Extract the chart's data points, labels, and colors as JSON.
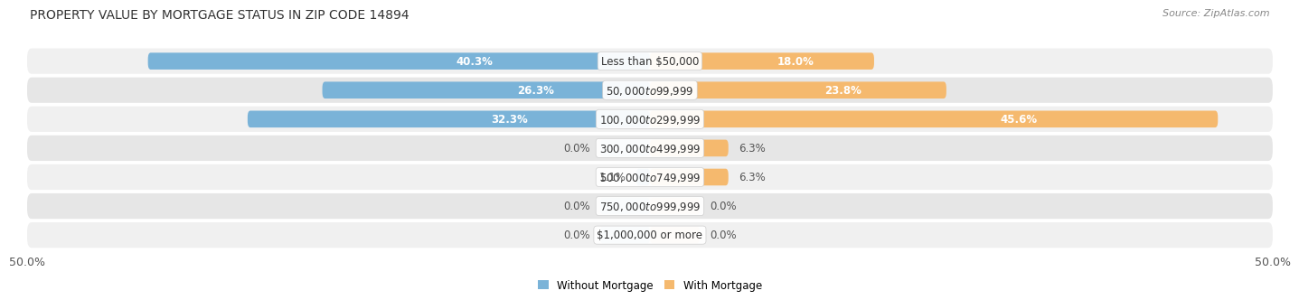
{
  "title": "PROPERTY VALUE BY MORTGAGE STATUS IN ZIP CODE 14894",
  "source": "Source: ZipAtlas.com",
  "categories": [
    "Less than $50,000",
    "$50,000 to $99,999",
    "$100,000 to $299,999",
    "$300,000 to $499,999",
    "$500,000 to $749,999",
    "$750,000 to $999,999",
    "$1,000,000 or more"
  ],
  "without_mortgage": [
    40.3,
    26.3,
    32.3,
    0.0,
    1.1,
    0.0,
    0.0
  ],
  "with_mortgage": [
    18.0,
    23.8,
    45.6,
    6.3,
    6.3,
    0.0,
    0.0
  ],
  "without_mortgage_color": "#7ab3d8",
  "with_mortgage_color": "#f5b96e",
  "without_mortgage_stub_color": "#aac8e0",
  "with_mortgage_stub_color": "#f5d4a8",
  "row_color_odd": "#f0f0f0",
  "row_color_even": "#e6e6e6",
  "axis_label_left": "50.0%",
  "axis_label_right": "50.0%",
  "max_val": 50.0,
  "stub_val": 4.0,
  "bar_height": 0.58,
  "title_fontsize": 10,
  "source_fontsize": 8,
  "label_fontsize": 8.5,
  "category_fontsize": 8.5,
  "axis_fontsize": 9,
  "legend_label_without": "Without Mortgage",
  "legend_label_with": "With Mortgage"
}
